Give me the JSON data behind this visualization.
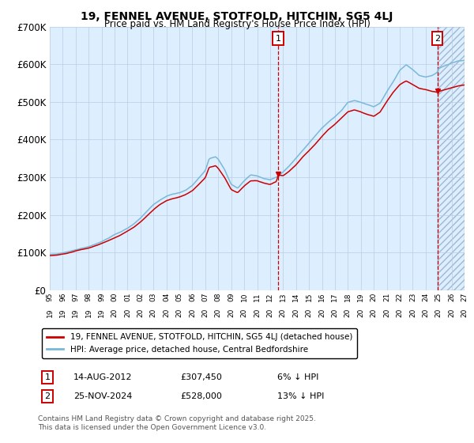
{
  "title": "19, FENNEL AVENUE, STOTFOLD, HITCHIN, SG5 4LJ",
  "subtitle": "Price paid vs. HM Land Registry's House Price Index (HPI)",
  "ylim": [
    0,
    700000
  ],
  "yticks": [
    0,
    100000,
    200000,
    300000,
    400000,
    500000,
    600000,
    700000
  ],
  "ytick_labels": [
    "£0",
    "£100K",
    "£200K",
    "£300K",
    "£400K",
    "£500K",
    "£600K",
    "£700K"
  ],
  "xstart_year": 1995,
  "xend_year": 2027,
  "xtick_years": [
    1995,
    1996,
    1997,
    1998,
    1999,
    2000,
    2001,
    2002,
    2003,
    2004,
    2005,
    2006,
    2007,
    2008,
    2009,
    2010,
    2011,
    2012,
    2013,
    2014,
    2015,
    2016,
    2017,
    2018,
    2019,
    2020,
    2021,
    2022,
    2023,
    2024,
    2025,
    2026,
    2027
  ],
  "hpi_color": "#7ab8d8",
  "price_color": "#cc0000",
  "bg_color": "#ddeeff",
  "grid_color": "#b8cce4",
  "purchase1_x": 2012.617,
  "purchase1_y": 307450,
  "purchase1_label": "1",
  "purchase1_date": "14-AUG-2012",
  "purchase1_price": "£307,450",
  "purchase1_hpi": "6% ↓ HPI",
  "purchase2_x": 2024.9,
  "purchase2_y": 528000,
  "purchase2_label": "2",
  "purchase2_date": "25-NOV-2024",
  "purchase2_price": "£528,000",
  "purchase2_hpi": "13% ↓ HPI",
  "legend_line1": "19, FENNEL AVENUE, STOTFOLD, HITCHIN, SG5 4LJ (detached house)",
  "legend_line2": "HPI: Average price, detached house, Central Bedfordshire",
  "footnote": "Contains HM Land Registry data © Crown copyright and database right 2025.\nThis data is licensed under the Open Government Licence v3.0.",
  "shaded_region_start": 2012.617,
  "shaded_region_end": 2027
}
